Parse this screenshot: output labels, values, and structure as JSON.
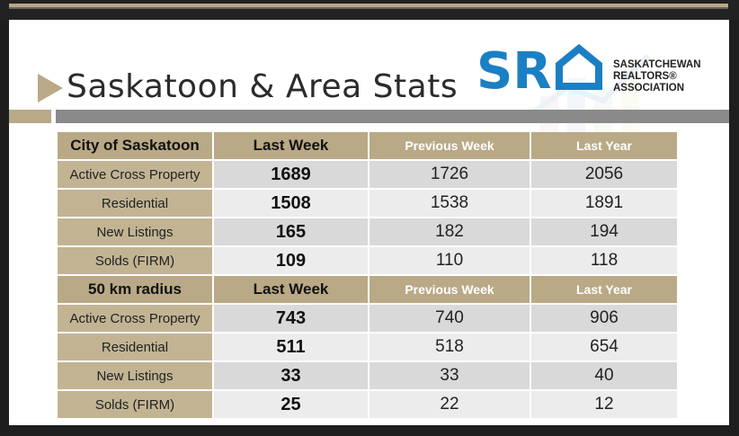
{
  "slide": {
    "title": "Saskatoon & Area Stats",
    "logo": {
      "line1": "SASKATCHEWAN",
      "line2": "REALTORS®",
      "line3": "ASSOCIATION"
    }
  },
  "colors": {
    "gold": "#b9a986",
    "gray_rule": "#8a8a8a",
    "logo_blue": "#1b7fc4"
  },
  "table": {
    "sections": [
      {
        "header": [
          "City of Saskatoon",
          "Last Week",
          "Previous Week",
          "Last Year"
        ],
        "rows": [
          {
            "label": "Active Cross Property",
            "last_week": "1689",
            "previous_week": "1726",
            "last_year": "2056"
          },
          {
            "label": "Residential",
            "last_week": "1508",
            "previous_week": "1538",
            "last_year": "1891"
          },
          {
            "label": "New Listings",
            "last_week": "165",
            "previous_week": "182",
            "last_year": "194"
          },
          {
            "label": "Solds (FIRM)",
            "last_week": "109",
            "previous_week": "110",
            "last_year": "118"
          }
        ]
      },
      {
        "header": [
          "50 km radius",
          "Last Week",
          "Previous Week",
          "Last Year"
        ],
        "rows": [
          {
            "label": "Active Cross Property",
            "last_week": "743",
            "previous_week": "740",
            "last_year": "906"
          },
          {
            "label": "Residential",
            "last_week": "511",
            "previous_week": "518",
            "last_year": "654"
          },
          {
            "label": "New Listings",
            "last_week": "33",
            "previous_week": "33",
            "last_year": "40"
          },
          {
            "label": "Solds (FIRM)",
            "last_week": "25",
            "previous_week": "22",
            "last_year": "12"
          }
        ]
      }
    ]
  }
}
